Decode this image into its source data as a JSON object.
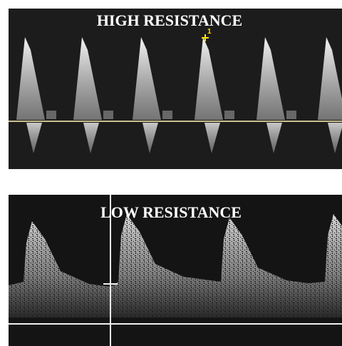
{
  "panels": [
    {
      "label": "HIGH RESISTANCE",
      "marker": "1"
    },
    {
      "label": "LOW RESISTANCE"
    }
  ]
}
